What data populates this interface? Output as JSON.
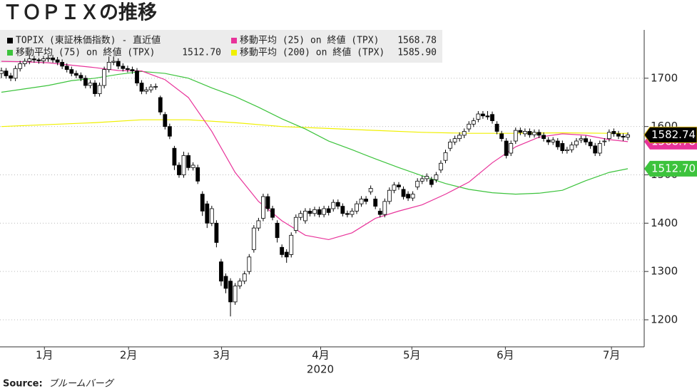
{
  "chart_data": {
    "type": "candlestick",
    "title": "ＴＯＰＩＸの推移",
    "xlabel": "2020",
    "source_label": "Source:",
    "source": "ブルームバーグ",
    "xlim": [
      -0.3,
      137.5
    ],
    "xticks": [
      {
        "value": 9.2,
        "label": "1月"
      },
      {
        "value": 27.2,
        "label": "2月"
      },
      {
        "value": 47.1,
        "label": "3月"
      },
      {
        "value": 68.3,
        "label": "4月"
      },
      {
        "value": 87.8,
        "label": "5月"
      },
      {
        "value": 107.8,
        "label": "6月"
      },
      {
        "value": 130.5,
        "label": "7月"
      }
    ],
    "ylim": [
      1144,
      1800
    ],
    "yticks": [
      1200,
      1300,
      1400,
      1500,
      1600,
      1700
    ],
    "grid": true,
    "series": [
      {
        "name": "TOPIX (東証株価指数) - 直近値",
        "color": "#000000",
        "label": "1582.74",
        "open": [
          1710,
          1715,
          1705,
          1700,
          1720,
          1730,
          1735,
          1740,
          1738,
          1736,
          1740,
          1742,
          1738,
          1733,
          1725,
          1718,
          1710,
          1706,
          1700,
          1685,
          1690,
          1668,
          1685,
          1718,
          1733,
          1735,
          1725,
          1720,
          1718,
          1715,
          1690,
          1673,
          1676,
          1682,
          1660,
          1625,
          1600,
          1555,
          1520,
          1500,
          1540,
          1515,
          1515,
          1460,
          1440,
          1400,
          1400,
          1320,
          1290,
          1280,
          1237,
          1270,
          1280,
          1300,
          1345,
          1390,
          1410,
          1455,
          1430,
          1400,
          1350,
          1340,
          1335,
          1385,
          1412,
          1405,
          1425,
          1420,
          1428,
          1418,
          1430,
          1430,
          1443,
          1435,
          1420,
          1418,
          1425,
          1440,
          1450,
          1465,
          1450,
          1425,
          1418,
          1445,
          1468,
          1479,
          1470,
          1460,
          1452,
          1475,
          1487,
          1492,
          1490,
          1490,
          1510,
          1530,
          1555,
          1568,
          1575,
          1582,
          1595,
          1605,
          1615,
          1626,
          1622,
          1625,
          1605,
          1585,
          1570,
          1545,
          1570,
          1592,
          1585,
          1590,
          1583,
          1588,
          1582,
          1572,
          1568,
          1570,
          1565,
          1550,
          1552,
          1562,
          1572,
          1575,
          1568,
          1560,
          1545,
          1570,
          1575,
          1590,
          1585,
          1580,
          1578
        ],
        "high": [
          1722,
          1721,
          1711,
          1726,
          1736,
          1741,
          1746,
          1746,
          1742,
          1746,
          1748,
          1748,
          1744,
          1739,
          1731,
          1724,
          1716,
          1712,
          1706,
          1696,
          1696,
          1691,
          1724,
          1745,
          1745,
          1741,
          1731,
          1726,
          1724,
          1721,
          1696,
          1682,
          1688,
          1689,
          1664,
          1630,
          1606,
          1560,
          1526,
          1548,
          1546,
          1526,
          1521,
          1466,
          1446,
          1436,
          1406,
          1326,
          1296,
          1286,
          1276,
          1286,
          1301,
          1336,
          1396,
          1411,
          1461,
          1461,
          1436,
          1406,
          1356,
          1346,
          1381,
          1418,
          1426,
          1431,
          1431,
          1434,
          1434,
          1436,
          1436,
          1449,
          1449,
          1441,
          1426,
          1431,
          1446,
          1456,
          1456,
          1478,
          1456,
          1431,
          1451,
          1474,
          1485,
          1485,
          1476,
          1466,
          1466,
          1493,
          1498,
          1503,
          1496,
          1506,
          1530,
          1552,
          1574,
          1581,
          1588,
          1596,
          1611,
          1618,
          1632,
          1632,
          1632,
          1631,
          1611,
          1591,
          1576,
          1571,
          1598,
          1598,
          1596,
          1596,
          1594,
          1594,
          1588,
          1578,
          1578,
          1576,
          1571,
          1558,
          1568,
          1576,
          1581,
          1581,
          1574,
          1566,
          1571,
          1576,
          1594,
          1596,
          1591,
          1586,
          1588
        ],
        "low": [
          1700,
          1699,
          1694,
          1694,
          1714,
          1724,
          1729,
          1732,
          1730,
          1730,
          1734,
          1732,
          1727,
          1719,
          1712,
          1704,
          1700,
          1694,
          1679,
          1679,
          1662,
          1662,
          1679,
          1712,
          1727,
          1719,
          1714,
          1712,
          1709,
          1684,
          1667,
          1667,
          1670,
          1676,
          1624,
          1594,
          1574,
          1510,
          1494,
          1494,
          1509,
          1509,
          1481,
          1415,
          1390,
          1394,
          1350,
          1270,
          1255,
          1207,
          1231,
          1264,
          1274,
          1294,
          1339,
          1384,
          1404,
          1424,
          1406,
          1360,
          1329,
          1318,
          1329,
          1379,
          1406,
          1399,
          1414,
          1414,
          1412,
          1412,
          1416,
          1424,
          1429,
          1414,
          1412,
          1412,
          1419,
          1434,
          1439,
          1459,
          1429,
          1412,
          1412,
          1439,
          1462,
          1469,
          1449,
          1446,
          1446,
          1469,
          1481,
          1486,
          1474,
          1484,
          1504,
          1524,
          1549,
          1562,
          1569,
          1576,
          1589,
          1599,
          1609,
          1616,
          1614,
          1606,
          1584,
          1569,
          1534,
          1539,
          1564,
          1582,
          1579,
          1577,
          1577,
          1576,
          1569,
          1562,
          1562,
          1552,
          1544,
          1544,
          1546,
          1556,
          1566,
          1562,
          1554,
          1539,
          1539,
          1560,
          1569,
          1579,
          1574,
          1570,
          1572
        ],
        "close": [
          1715,
          1705,
          1700,
          1720,
          1730,
          1735,
          1740,
          1738,
          1736,
          1740,
          1742,
          1738,
          1733,
          1725,
          1718,
          1710,
          1706,
          1700,
          1685,
          1690,
          1668,
          1685,
          1718,
          1733,
          1735,
          1725,
          1720,
          1718,
          1715,
          1690,
          1673,
          1676,
          1682,
          1683,
          1630,
          1600,
          1580,
          1520,
          1500,
          1540,
          1515,
          1520,
          1487,
          1425,
          1400,
          1430,
          1360,
          1280,
          1265,
          1237,
          1270,
          1280,
          1295,
          1330,
          1390,
          1405,
          1455,
          1430,
          1412,
          1370,
          1335,
          1330,
          1375,
          1412,
          1420,
          1425,
          1420,
          1428,
          1418,
          1430,
          1422,
          1443,
          1435,
          1420,
          1418,
          1425,
          1440,
          1450,
          1445,
          1472,
          1435,
          1418,
          1445,
          1468,
          1479,
          1475,
          1455,
          1452,
          1460,
          1487,
          1492,
          1497,
          1480,
          1500,
          1524,
          1546,
          1568,
          1575,
          1582,
          1590,
          1605,
          1612,
          1626,
          1622,
          1620,
          1612,
          1590,
          1575,
          1540,
          1565,
          1592,
          1588,
          1590,
          1583,
          1588,
          1582,
          1575,
          1568,
          1572,
          1558,
          1550,
          1552,
          1562,
          1570,
          1575,
          1568,
          1560,
          1545,
          1565,
          1570,
          1588,
          1585,
          1580,
          1578,
          1582.74
        ]
      },
      {
        "name": "移動平均 (25)  on 終値 (TPX)",
        "type": "line",
        "color": "#e8339a",
        "label": "1568.78",
        "x": [
          0,
          5,
          10,
          15,
          20,
          25,
          30,
          35,
          40,
          45,
          50,
          55,
          60,
          65,
          70,
          75,
          80,
          85,
          90,
          95,
          100,
          105,
          110,
          115,
          120,
          125,
          130,
          134
        ],
        "values": [
          1735,
          1734,
          1732,
          1727,
          1722,
          1716,
          1715,
          1697,
          1660,
          1590,
          1505,
          1445,
          1405,
          1375,
          1366,
          1380,
          1410,
          1425,
          1438,
          1460,
          1485,
          1525,
          1558,
          1578,
          1585,
          1582,
          1573,
          1568.78
        ]
      },
      {
        "name": "移動平均 (75)  on 終値 (TPX)",
        "type": "line",
        "color": "#3cc33c",
        "label": "1512.70",
        "x": [
          0,
          5,
          10,
          15,
          20,
          25,
          30,
          35,
          40,
          45,
          50,
          55,
          60,
          65,
          70,
          75,
          80,
          85,
          90,
          95,
          100,
          105,
          110,
          115,
          120,
          125,
          130,
          134
        ],
        "values": [
          1671,
          1678,
          1685,
          1695,
          1700,
          1708,
          1714,
          1710,
          1700,
          1680,
          1662,
          1640,
          1616,
          1595,
          1570,
          1552,
          1533,
          1515,
          1498,
          1482,
          1470,
          1463,
          1460,
          1462,
          1468,
          1488,
          1505,
          1512.7
        ]
      },
      {
        "name": "移動平均 (200)  on 終値 (TPX)",
        "type": "line",
        "color": "#f0f000",
        "label": "1585.90",
        "x": [
          0,
          10,
          20,
          30,
          40,
          50,
          60,
          70,
          80,
          90,
          100,
          110,
          120,
          130,
          134
        ],
        "values": [
          1600,
          1604,
          1608,
          1614,
          1614,
          1608,
          1600,
          1596,
          1592,
          1588,
          1586,
          1586,
          1587,
          1586,
          1585.9
        ]
      }
    ]
  }
}
